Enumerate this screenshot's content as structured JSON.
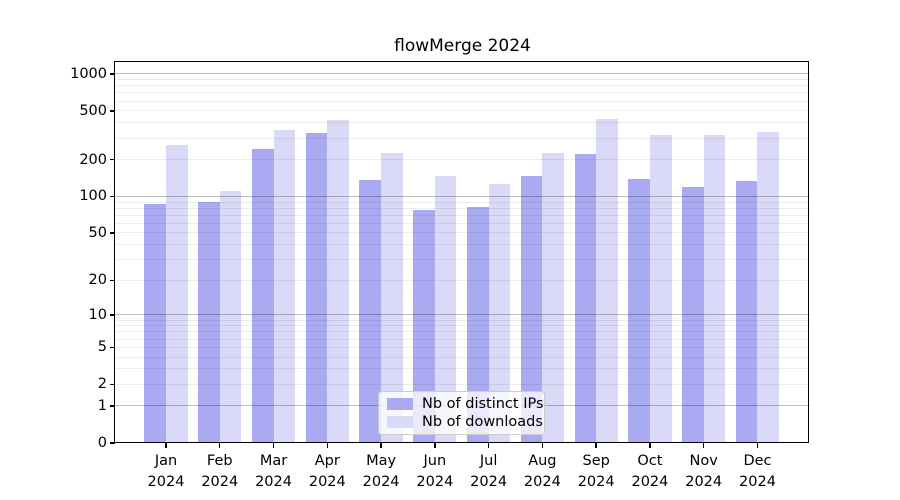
{
  "title": "flowMerge 2024",
  "colors": {
    "ips_bar": "#aaaaf2",
    "downloads_bar": "#dadaf8",
    "grid_major": "rgba(0,0,0,0.25)",
    "grid_minor": "rgba(0,0,0,0.075)",
    "axis": "#000000",
    "background": "#ffffff",
    "legend_border": "#cccccc"
  },
  "legend": {
    "items": [
      {
        "key": "ips",
        "label": "Nb of distinct IPs"
      },
      {
        "key": "downloads",
        "label": "Nb of downloads"
      }
    ],
    "position": "lower center"
  },
  "chart_data": {
    "type": "bar",
    "title": "flowMerge 2024",
    "categories": [
      "Jan 2024",
      "Feb 2024",
      "Mar 2024",
      "Apr 2024",
      "May 2024",
      "Jun 2024",
      "Jul 2024",
      "Aug 2024",
      "Sep 2024",
      "Oct 2024",
      "Nov 2024",
      "Dec 2024"
    ],
    "month_labels": [
      "Jan",
      "Feb",
      "Mar",
      "Apr",
      "May",
      "Jun",
      "Jul",
      "Aug",
      "Sep",
      "Oct",
      "Nov",
      "Dec"
    ],
    "year_label": "2024",
    "series": [
      {
        "key": "ips",
        "name": "Nb of distinct IPs",
        "values": [
          86,
          90,
          245,
          333,
          136,
          77,
          82,
          148,
          224,
          138,
          120,
          134
        ]
      },
      {
        "key": "downloads",
        "name": "Nb of downloads",
        "values": [
          262,
          110,
          348,
          425,
          226,
          147,
          127,
          226,
          426,
          321,
          320,
          338
        ]
      }
    ],
    "xlabel": "",
    "ylabel": "",
    "yscale": "log1p",
    "y_ticks": [
      0,
      1,
      2,
      5,
      10,
      20,
      50,
      100,
      200,
      500,
      1000
    ],
    "ylim": [
      0,
      1250
    ],
    "grid": true,
    "grid_major_at": [
      1,
      10,
      100,
      1000
    ],
    "legend_position": "lower center"
  }
}
